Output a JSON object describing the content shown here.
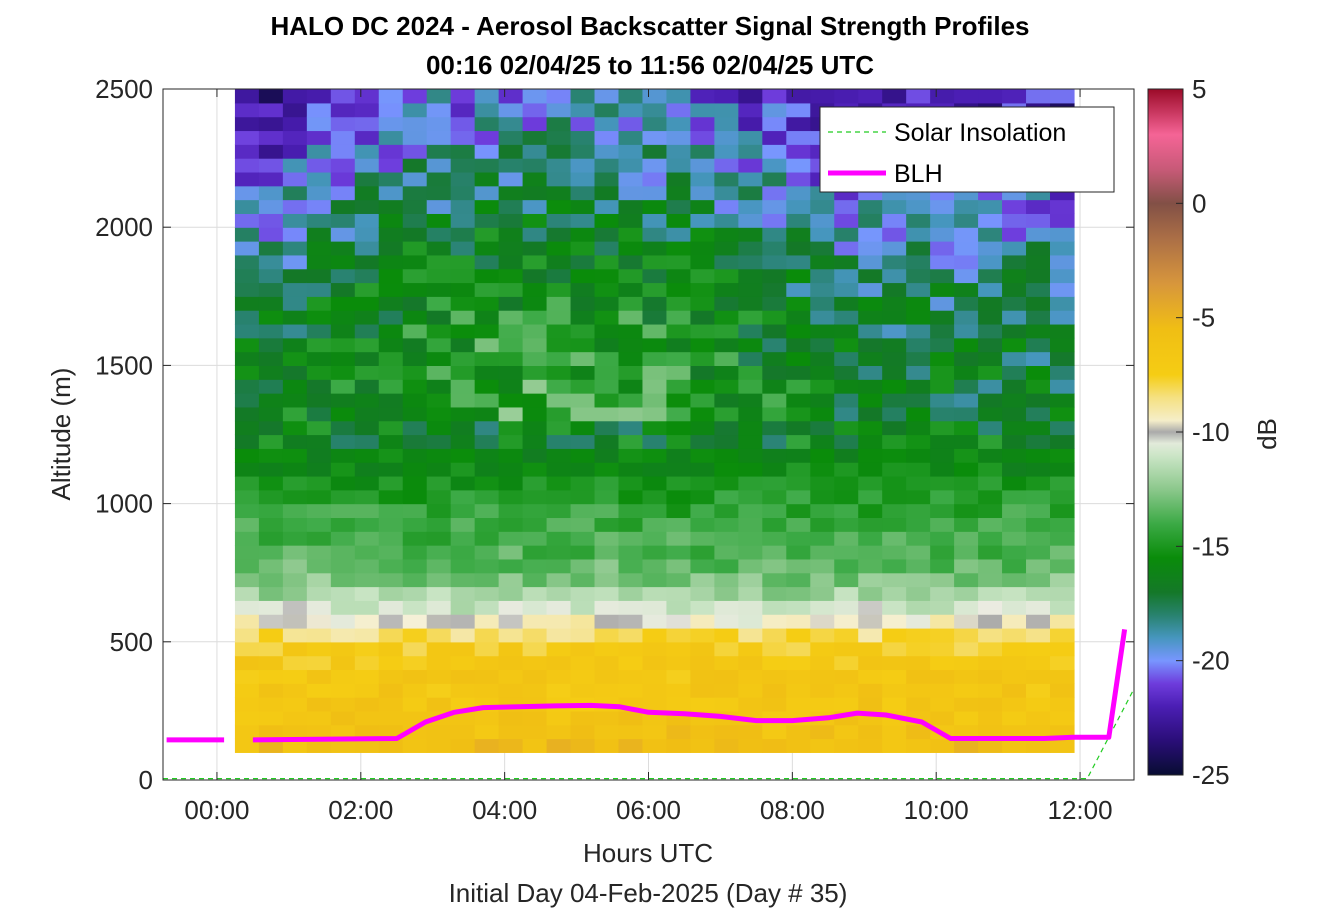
{
  "chart_data": {
    "type": "heatmap",
    "title": "HALO DC 2024 - Aerosol Backscatter Signal Strength Profiles",
    "subtitle": "00:16 02/04/25 to 11:56 02/04/25  UTC",
    "xlabel": "Hours UTC",
    "x_sublabel": "Initial Day 04-Feb-2025 (Day # 35)",
    "ylabel": "Altitude (m)",
    "colorbar_label": "dB",
    "xlim": [
      -0.75,
      12.75
    ],
    "ylim": [
      0,
      2500
    ],
    "clim": [
      -25,
      5
    ],
    "x_ticks": [
      0,
      2,
      4,
      6,
      8,
      10,
      12
    ],
    "x_tick_labels": [
      "00:00",
      "02:00",
      "04:00",
      "06:00",
      "08:00",
      "10:00",
      "12:00"
    ],
    "y_ticks": [
      0,
      500,
      1000,
      1500,
      2000,
      2500
    ],
    "y_tick_labels": [
      "0",
      "500",
      "1000",
      "1500",
      "2000",
      "2500"
    ],
    "colorbar_ticks": [
      5,
      0,
      -5,
      -10,
      -15,
      -20,
      -25
    ],
    "colorbar_tick_labels": [
      "5",
      "0",
      "-5",
      "-10",
      "-15",
      "-20",
      "-25"
    ],
    "grid": true,
    "legend_position": "top-right",
    "heatmap": {
      "x_start": 0.25,
      "x_step": 0.3333,
      "x_count": 35,
      "y_start": 100,
      "y_step": 50,
      "y_count": 48,
      "value_profile": {
        "altitude_m": [
          100,
          150,
          250,
          400,
          500,
          550,
          600,
          700,
          800,
          900,
          1000,
          1100,
          1300,
          1500,
          1700,
          1900,
          2100,
          2300,
          2500
        ],
        "signal_db": [
          -5.5,
          -6.0,
          -6.5,
          -6.8,
          -7.5,
          -9.0,
          -10.5,
          -12.5,
          -13.5,
          -14.0,
          -14.5,
          -15.5,
          -16.5,
          -17.0,
          -17.5,
          -18.5,
          -20.0,
          -21.5,
          -22.5
        ]
      }
    },
    "series": [
      {
        "name": "Solar Insolation",
        "style": "dashed",
        "color": "#22cc22",
        "x": [
          -0.75,
          12.1,
          12.75
        ],
        "y": [
          5,
          5,
          330
        ]
      },
      {
        "name": "BLH",
        "style": "solid",
        "color": "#ff00ff",
        "x": [
          -0.7,
          0.1,
          0.5,
          2.5,
          2.9,
          3.3,
          3.7,
          4.2,
          4.7,
          5.2,
          5.6,
          6.0,
          6.5,
          7.0,
          7.5,
          8.0,
          8.5,
          8.9,
          9.3,
          9.8,
          10.2,
          10.6,
          11.0,
          11.5,
          11.9,
          12.4,
          12.62
        ],
        "y": [
          145,
          145,
          145,
          150,
          210,
          245,
          262,
          265,
          268,
          270,
          265,
          245,
          240,
          230,
          215,
          215,
          225,
          242,
          235,
          210,
          150,
          150,
          150,
          150,
          155,
          155,
          545
        ],
        "gap_after_x": 0.1
      }
    ]
  }
}
